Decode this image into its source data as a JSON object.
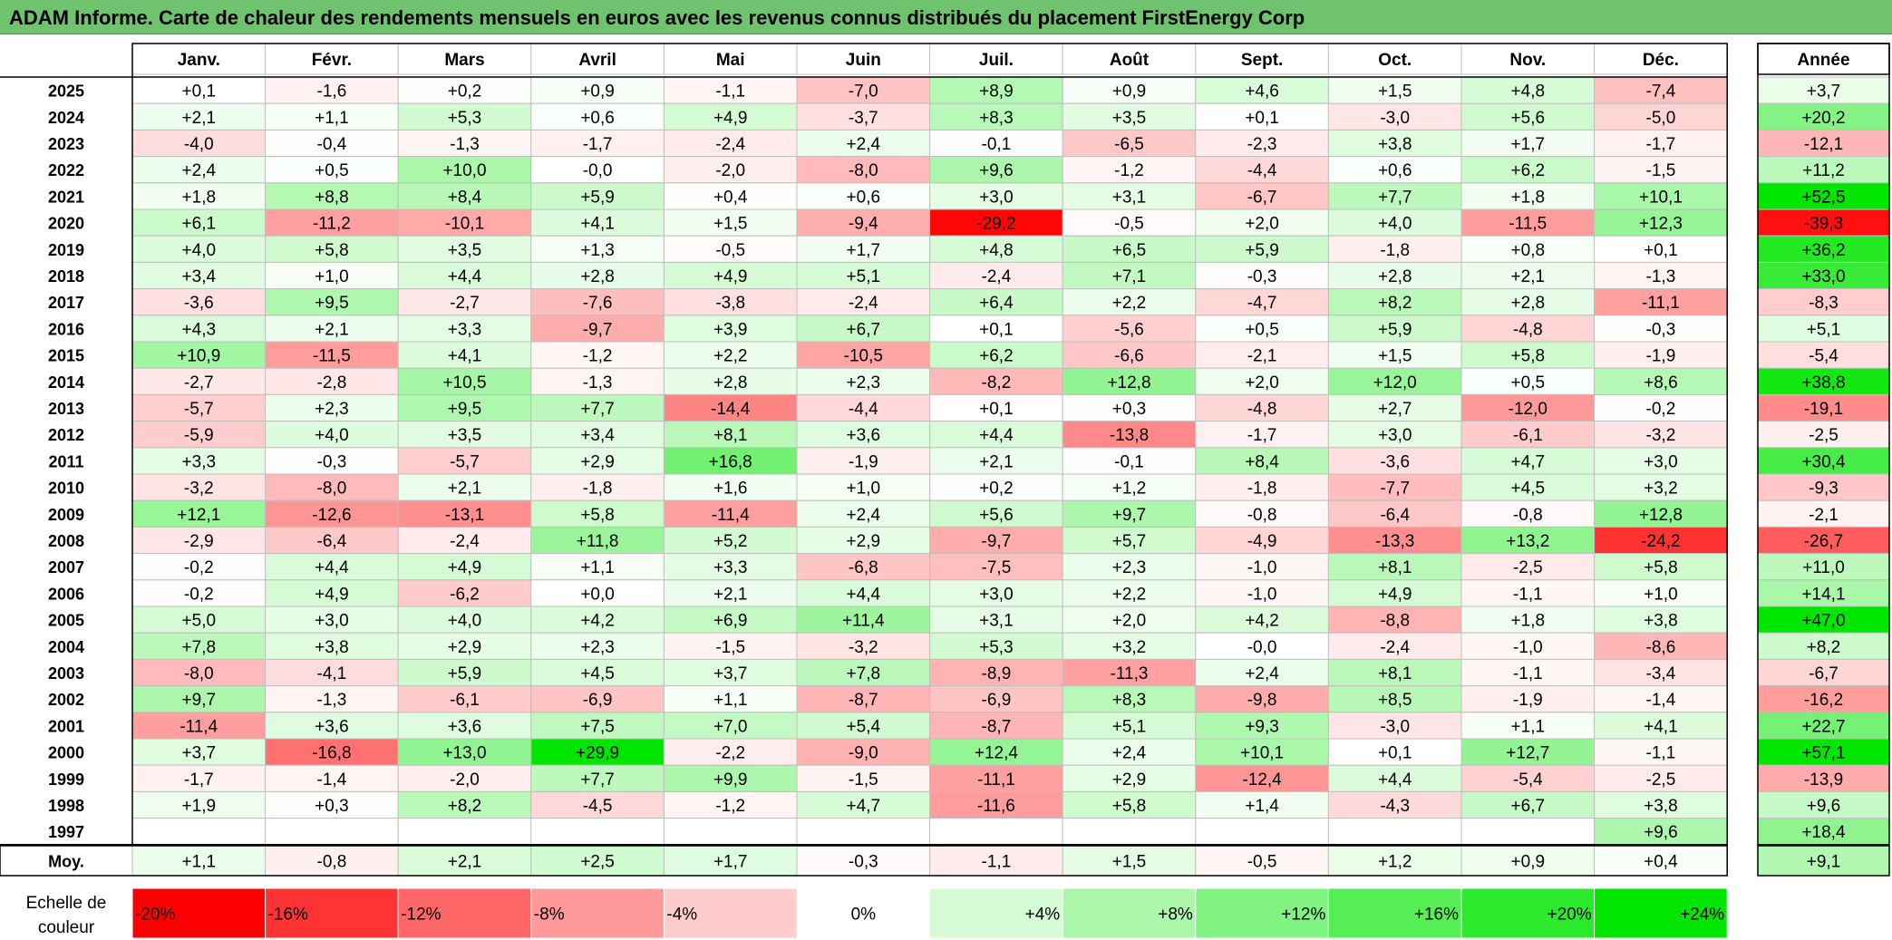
{
  "title": "ADAM Informe. Carte de chaleur des rendements mensuels en euros avec les revenus connus distribués du placement FirstEnergy Corp",
  "chart_data": {
    "type": "heatmap",
    "months": [
      "Janv.",
      "Févr.",
      "Mars",
      "Avril",
      "Mai",
      "Juin",
      "Juil.",
      "Août",
      "Sept.",
      "Oct.",
      "Nov.",
      "Déc."
    ],
    "annual_header": "Année",
    "years": [
      "2025",
      "2024",
      "2023",
      "2022",
      "2021",
      "2020",
      "2019",
      "2018",
      "2017",
      "2016",
      "2015",
      "2014",
      "2013",
      "2012",
      "2011",
      "2010",
      "2009",
      "2008",
      "2007",
      "2006",
      "2005",
      "2004",
      "2003",
      "2002",
      "2001",
      "2000",
      "1999",
      "1998",
      "1997"
    ],
    "values": [
      [
        "+0,1",
        "-1,6",
        "+0,2",
        "+0,9",
        "-1,1",
        "-7,0",
        "+8,9",
        "+0,9",
        "+4,6",
        "+1,5",
        "+4,8",
        "-7,4"
      ],
      [
        "+2,1",
        "+1,1",
        "+5,3",
        "+0,6",
        "+4,9",
        "-3,7",
        "+8,3",
        "+3,5",
        "+0,1",
        "-3,0",
        "+5,6",
        "-5,0"
      ],
      [
        "-4,0",
        "-0,4",
        "-1,3",
        "-1,7",
        "-2,4",
        "+2,4",
        "-0,1",
        "-6,5",
        "-2,3",
        "+3,8",
        "+1,7",
        "-1,7"
      ],
      [
        "+2,4",
        "+0,5",
        "+10,0",
        "-0,0",
        "-2,0",
        "-8,0",
        "+9,6",
        "-1,2",
        "-4,4",
        "+0,6",
        "+6,2",
        "-1,5"
      ],
      [
        "+1,8",
        "+8,8",
        "+8,4",
        "+5,9",
        "+0,4",
        "+0,6",
        "+3,0",
        "+3,1",
        "-6,7",
        "+7,7",
        "+1,8",
        "+10,1"
      ],
      [
        "+6,1",
        "-11,2",
        "-10,1",
        "+4,1",
        "+1,5",
        "-9,4",
        "-29,2",
        "-0,5",
        "+2,0",
        "+4,0",
        "-11,5",
        "+12,3"
      ],
      [
        "+4,0",
        "+5,8",
        "+3,5",
        "+1,3",
        "-0,5",
        "+1,7",
        "+4,8",
        "+6,5",
        "+5,9",
        "-1,8",
        "+0,8",
        "+0,1"
      ],
      [
        "+3,4",
        "+1,0",
        "+4,4",
        "+2,8",
        "+4,9",
        "+5,1",
        "-2,4",
        "+7,1",
        "-0,3",
        "+2,8",
        "+2,1",
        "-1,3"
      ],
      [
        "-3,6",
        "+9,5",
        "-2,7",
        "-7,6",
        "-3,8",
        "-2,4",
        "+6,4",
        "+2,2",
        "-4,7",
        "+8,2",
        "+2,8",
        "-11,1"
      ],
      [
        "+4,3",
        "+2,1",
        "+3,3",
        "-9,7",
        "+3,9",
        "+6,7",
        "+0,1",
        "-5,6",
        "+0,5",
        "+5,9",
        "-4,8",
        "-0,3"
      ],
      [
        "+10,9",
        "-11,5",
        "+4,1",
        "-1,2",
        "+2,2",
        "-10,5",
        "+6,2",
        "-6,6",
        "-2,1",
        "+1,5",
        "+5,8",
        "-1,9"
      ],
      [
        "-2,7",
        "-2,8",
        "+10,5",
        "-1,3",
        "+2,8",
        "+2,3",
        "-8,2",
        "+12,8",
        "+2,0",
        "+12,0",
        "+0,5",
        "+8,6"
      ],
      [
        "-5,7",
        "+2,3",
        "+9,5",
        "+7,7",
        "-14,4",
        "-4,4",
        "+0,1",
        "+0,3",
        "-4,8",
        "+2,7",
        "-12,0",
        "-0,2"
      ],
      [
        "-5,9",
        "+4,0",
        "+3,5",
        "+3,4",
        "+8,1",
        "+3,6",
        "+4,4",
        "-13,8",
        "-1,7",
        "+3,0",
        "-6,1",
        "-3,2"
      ],
      [
        "+3,3",
        "-0,3",
        "-5,7",
        "+2,9",
        "+16,8",
        "-1,9",
        "+2,1",
        "-0,1",
        "+8,4",
        "-3,6",
        "+4,7",
        "+3,0"
      ],
      [
        "-3,2",
        "-8,0",
        "+2,1",
        "-1,8",
        "+1,6",
        "+1,0",
        "+0,2",
        "+1,2",
        "-1,8",
        "-7,7",
        "+4,5",
        "+3,2"
      ],
      [
        "+12,1",
        "-12,6",
        "-13,1",
        "+5,8",
        "-11,4",
        "+2,4",
        "+5,6",
        "+9,7",
        "-0,8",
        "-6,4",
        "-0,8",
        "+12,8"
      ],
      [
        "-2,9",
        "-6,4",
        "-2,4",
        "+11,8",
        "+5,2",
        "+2,9",
        "-9,7",
        "+5,7",
        "-4,9",
        "-13,3",
        "+13,2",
        "-24,2"
      ],
      [
        "-0,2",
        "+4,4",
        "+4,9",
        "+1,1",
        "+3,3",
        "-6,8",
        "-7,5",
        "+2,3",
        "-1,0",
        "+8,1",
        "-2,5",
        "+5,8"
      ],
      [
        "-0,2",
        "+4,9",
        "-6,2",
        "+0,0",
        "+2,1",
        "+4,4",
        "+3,0",
        "+2,2",
        "-1,0",
        "+4,9",
        "-1,1",
        "+1,0"
      ],
      [
        "+5,0",
        "+3,0",
        "+4,0",
        "+4,2",
        "+6,9",
        "+11,4",
        "+3,1",
        "+2,0",
        "+4,2",
        "-8,8",
        "+1,8",
        "+3,8"
      ],
      [
        "+7,8",
        "+3,8",
        "+2,9",
        "+2,3",
        "-1,5",
        "-3,2",
        "+5,3",
        "+3,2",
        "-0,0",
        "-2,4",
        "-1,0",
        "-8,6"
      ],
      [
        "-8,0",
        "-4,1",
        "+5,9",
        "+4,5",
        "+3,7",
        "+7,8",
        "-8,9",
        "-11,3",
        "+2,4",
        "+8,1",
        "-1,1",
        "-3,4"
      ],
      [
        "+9,7",
        "-1,3",
        "-6,1",
        "-6,9",
        "+1,1",
        "-8,7",
        "-6,9",
        "+8,3",
        "-9,8",
        "+8,5",
        "-1,9",
        "-1,4"
      ],
      [
        "-11,4",
        "+3,6",
        "+3,6",
        "+7,5",
        "+7,0",
        "+5,4",
        "-8,7",
        "+5,1",
        "+9,3",
        "-3,0",
        "+1,1",
        "+4,1"
      ],
      [
        "+3,7",
        "-16,8",
        "+13,0",
        "+29,9",
        "-2,2",
        "-9,0",
        "+12,4",
        "+2,4",
        "+10,1",
        "+0,1",
        "+12,7",
        "-1,1"
      ],
      [
        "-1,7",
        "-1,4",
        "-2,0",
        "+7,7",
        "+9,9",
        "-1,5",
        "-11,1",
        "+2,9",
        "-12,4",
        "+4,4",
        "-5,4",
        "-2,5"
      ],
      [
        "+1,9",
        "+0,3",
        "+8,2",
        "-4,5",
        "-1,2",
        "+4,7",
        "-11,6",
        "+5,8",
        "+1,4",
        "-4,3",
        "+6,7",
        "+3,8"
      ],
      [
        "",
        "",
        "",
        "",
        "",
        "",
        "",
        "",
        "",
        "",
        "",
        "+9,6"
      ]
    ],
    "annual": [
      "+3,7",
      "+20,2",
      "-12,1",
      "+11,2",
      "+52,5",
      "-39,3",
      "+36,2",
      "+33,0",
      "-8,3",
      "+5,1",
      "-5,4",
      "+38,8",
      "-19,1",
      "-2,5",
      "+30,4",
      "-9,3",
      "-2,1",
      "-26,7",
      "+11,0",
      "+14,1",
      "+47,0",
      "+8,2",
      "-6,7",
      "-16,2",
      "+22,7",
      "+57,1",
      "-13,9",
      "+9,6",
      "+18,4"
    ],
    "average_label": "Moy.",
    "averages": [
      "+1,1",
      "-0,8",
      "+2,1",
      "+2,5",
      "+1,7",
      "-0,3",
      "-1,1",
      "+1,5",
      "-0,5",
      "+1,2",
      "+0,9",
      "+0,4"
    ],
    "average_annual": "+9,1",
    "scale_label": [
      "Echelle de",
      "couleur"
    ],
    "scale": [
      {
        "label": "-20%",
        "value": -20
      },
      {
        "label": "-16%",
        "value": -16
      },
      {
        "label": "-12%",
        "value": -12
      },
      {
        "label": "-8%",
        "value": -8
      },
      {
        "label": "-4%",
        "value": -4
      },
      {
        "label": "0%",
        "value": 0
      },
      {
        "label": "+4%",
        "value": 4
      },
      {
        "label": "+8%",
        "value": 8
      },
      {
        "label": "+12%",
        "value": 12
      },
      {
        "label": "+16%",
        "value": 16
      },
      {
        "label": "+20%",
        "value": 20
      },
      {
        "label": "+24%",
        "value": 24
      }
    ],
    "colors": {
      "negative_max": "#ff0000",
      "neutral": "#ffffff",
      "positive_max": "#00e600",
      "title_bar": "#6fc36f",
      "grid": "#bfbfbf"
    }
  }
}
